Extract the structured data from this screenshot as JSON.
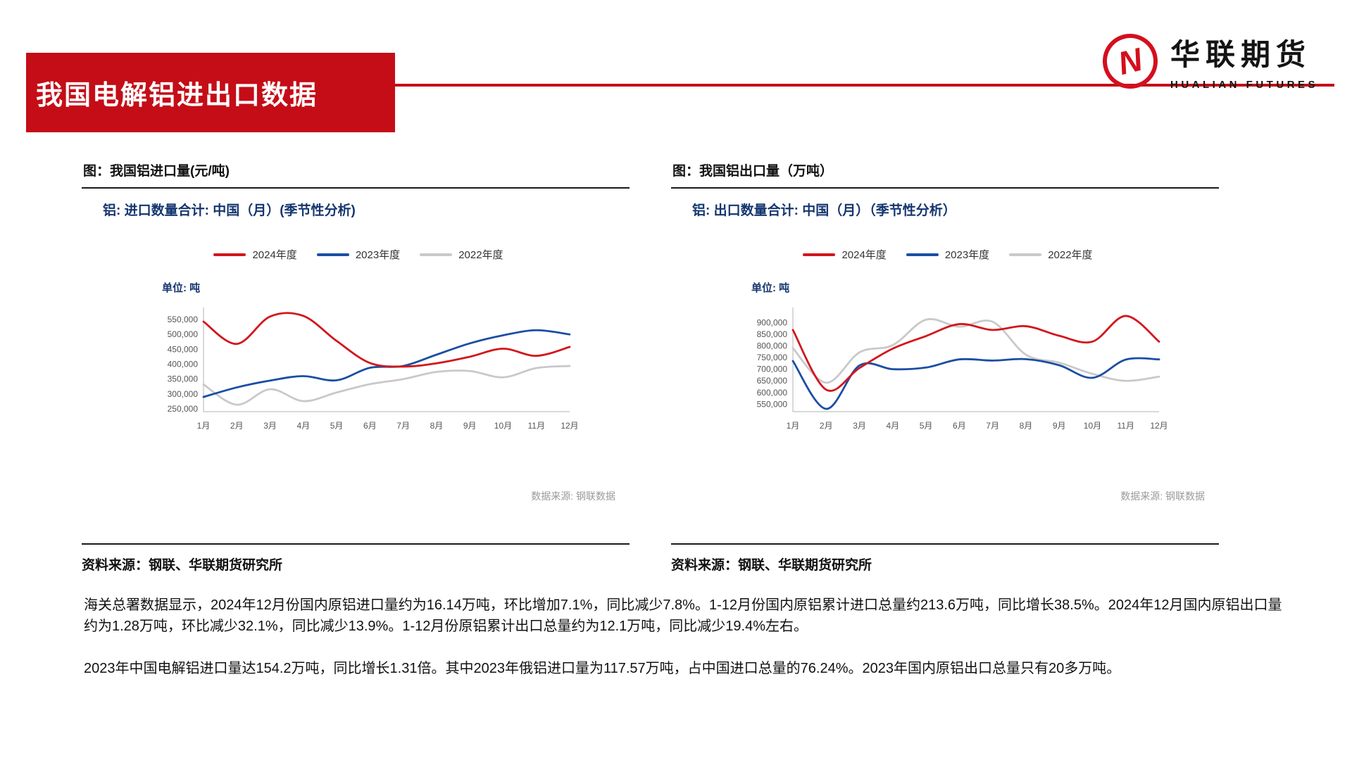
{
  "page": {
    "title": "我国电解铝进出口数据",
    "logo": {
      "brand_cn": "华联期货",
      "brand_en": "HUALIAN FUTURES",
      "accent": "#d40f1e"
    }
  },
  "panels": [
    {
      "caption": "图：我国铝进口量(元/吨)",
      "source_note": "资料来源：钢联、华联期货研究所"
    },
    {
      "caption": "图：我国铝出口量（万吨）",
      "source_note": "资料来源：钢联、华联期货研究所"
    }
  ],
  "chart_data": [
    {
      "type": "line",
      "title": "铝: 进口数量合计: 中国（月）(季节性分析)",
      "unit_label": "单位: 吨",
      "source_label": "数据来源: 钢联数据",
      "legend_position": "top",
      "grid": false,
      "x": [
        "1月",
        "2月",
        "3月",
        "4月",
        "5月",
        "6月",
        "7月",
        "8月",
        "9月",
        "10月",
        "11月",
        "12月"
      ],
      "yticks": [
        250000,
        300000,
        350000,
        400000,
        450000,
        500000,
        550000
      ],
      "ylim": [
        250000,
        550000
      ],
      "series": [
        {
          "name": "2024年度",
          "color": "#d2161c",
          "values": [
            543000,
            468000,
            560000,
            562000,
            478000,
            404000,
            392000,
            403000,
            425000,
            452000,
            428000,
            458000
          ]
        },
        {
          "name": "2023年度",
          "color": "#1b4ea3",
          "values": [
            290000,
            322000,
            345000,
            360000,
            346000,
            388000,
            394000,
            432000,
            470000,
            497000,
            514000,
            500000
          ]
        },
        {
          "name": "2022年度",
          "color": "#c9c9c9",
          "values": [
            332000,
            264000,
            316000,
            276000,
            305000,
            333000,
            350000,
            374000,
            377000,
            356000,
            387000,
            394000
          ]
        }
      ]
    },
    {
      "type": "line",
      "title": "铝: 出口数量合计: 中国（月）（季节性分析）",
      "unit_label": "单位: 吨",
      "source_label": "数据来源: 钢联数据",
      "legend_position": "top",
      "grid": false,
      "x": [
        "1月",
        "2月",
        "3月",
        "4月",
        "5月",
        "6月",
        "7月",
        "8月",
        "9月",
        "10月",
        "11月",
        "12月"
      ],
      "yticks": [
        550000,
        600000,
        650000,
        700000,
        750000,
        800000,
        850000,
        900000
      ],
      "ylim": [
        550000,
        900000
      ],
      "series": [
        {
          "name": "2024年度",
          "color": "#d2161c",
          "values": [
            868000,
            612000,
            705000,
            788000,
            842000,
            893000,
            868000,
            884000,
            843000,
            818000,
            928000,
            818000
          ]
        },
        {
          "name": "2023年度",
          "color": "#1b4ea3",
          "values": [
            735000,
            530000,
            716000,
            700000,
            707000,
            742000,
            737000,
            743000,
            717000,
            663000,
            741000,
            742000
          ]
        },
        {
          "name": "2022年度",
          "color": "#c9c9c9",
          "values": [
            790000,
            642000,
            772000,
            803000,
            912000,
            882000,
            903000,
            762000,
            728000,
            680000,
            650000,
            668000
          ]
        }
      ]
    }
  ],
  "paragraphs": [
    "海关总署数据显示，2024年12月份国内原铝进口量约为16.14万吨，环比增加7.1%，同比减少7.8%。1-12月份国内原铝累计进口总量约213.6万吨，同比增长38.5%。2024年12月国内原铝出口量约为1.28万吨，环比减少32.1%，同比减少13.9%。1-12月份原铝累计出口总量约为12.1万吨，同比减少19.4%左右。",
    "2023年中国电解铝进口量达154.2万吨，同比增长1.31倍。其中2023年俄铝进口量为117.57万吨，占中国进口总量的76.24%。2023年国内原铝出口总量只有20多万吨。"
  ]
}
